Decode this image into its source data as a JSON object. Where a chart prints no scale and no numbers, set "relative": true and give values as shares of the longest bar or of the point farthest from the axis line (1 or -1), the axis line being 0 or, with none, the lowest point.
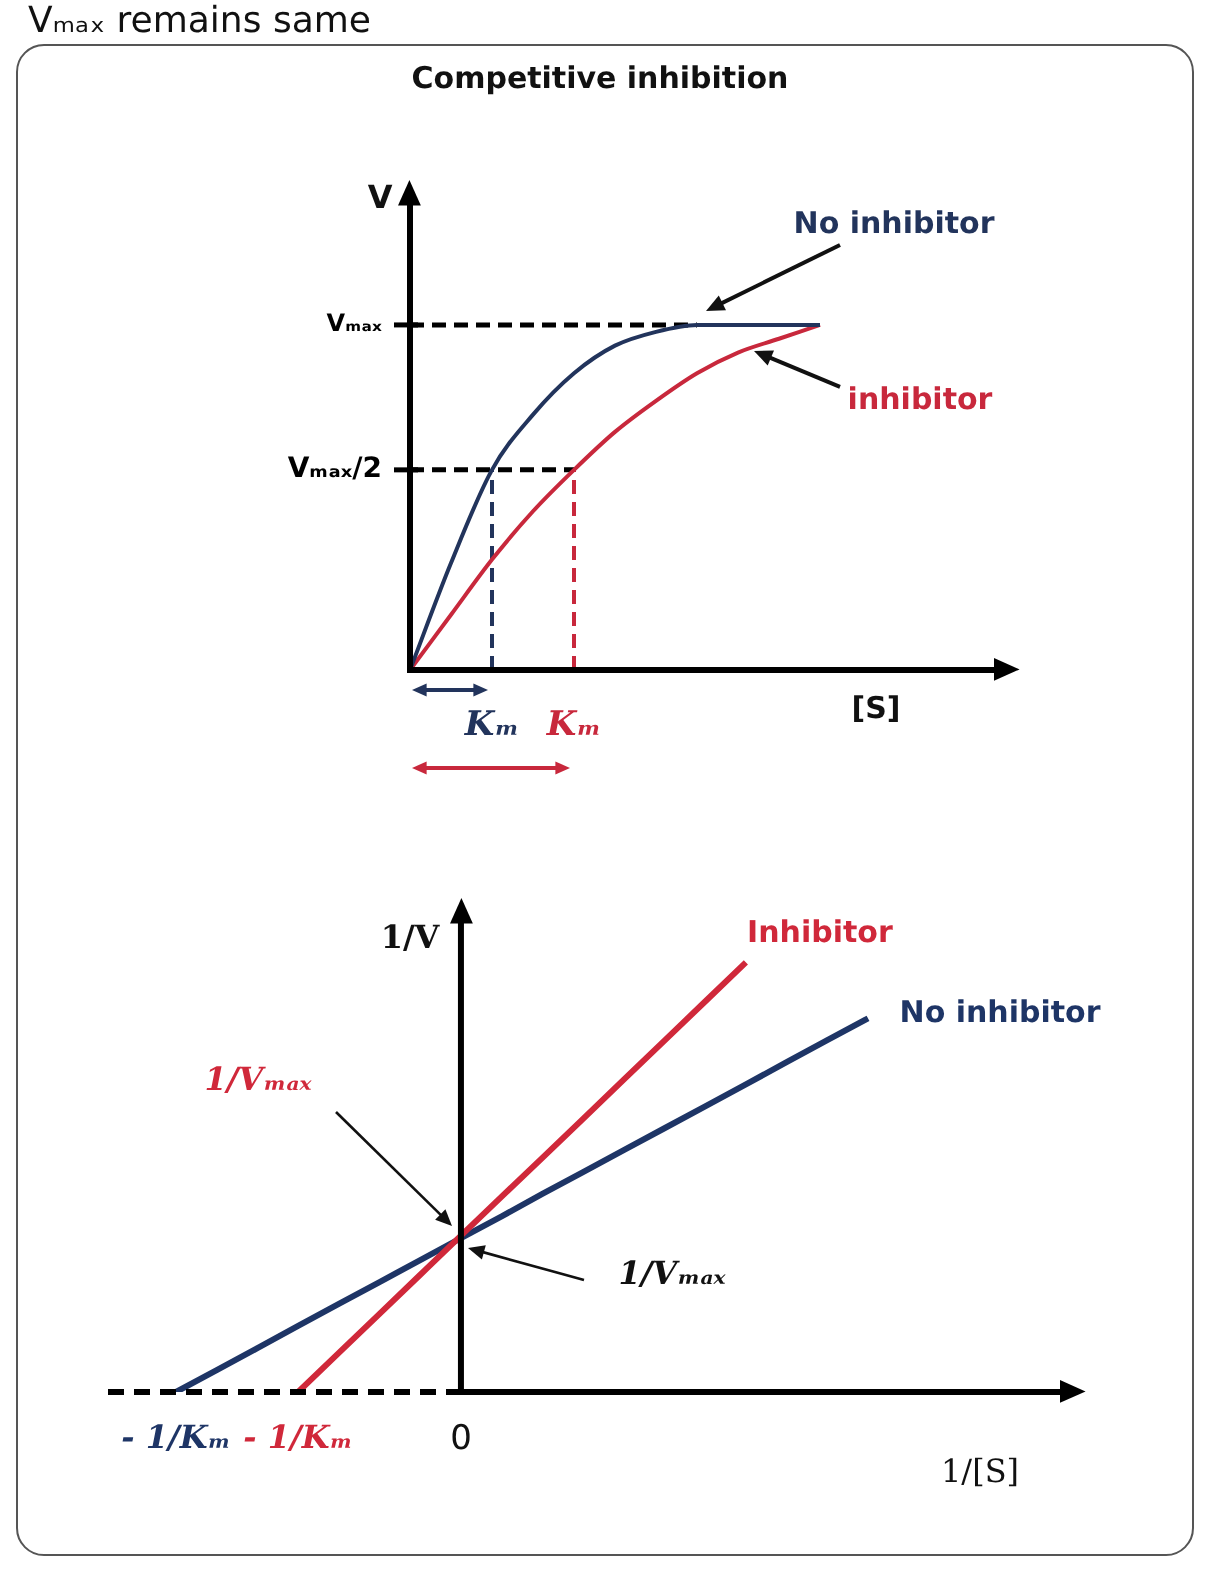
{
  "chart_data": [
    {
      "type": "line",
      "title": "Competitive inhibition",
      "xlabel": "[S]",
      "ylabel": "V",
      "relative": true,
      "categories": [
        null,
        null,
        "Kₘ",
        null,
        "Kₘ",
        null,
        null,
        null,
        null,
        null,
        null
      ],
      "series": [
        {
          "name": "No inhibitor",
          "color": "#22345c",
          "values": [
            0,
            0.31,
            0.58,
            0.74,
            0.86,
            0.94,
            0.98,
            1,
            1,
            1,
            1
          ]
        },
        {
          "name": "inhibitor",
          "color": "#c8283c",
          "values": [
            0,
            0.16,
            0.32,
            0.46,
            0.58,
            0.69,
            0.78,
            0.86,
            0.92,
            0.96,
            1
          ]
        }
      ],
      "ref_lines": [
        {
          "axis": "y",
          "value": 1,
          "label": "Vₘₐₓ",
          "color": "#000000",
          "line_style": "dashed"
        },
        {
          "axis": "y",
          "value": 0.58,
          "label": "Vₘₐₓ/2",
          "color": "#000000",
          "line_style": "dashed"
        },
        {
          "axis": "x",
          "value": "Kₘ",
          "color": "#22345c",
          "line_style": "dashed"
        }
      ],
      "annotations": [
        "Vₘₐₓ remains same"
      ]
    },
    {
      "type": "line",
      "xlabel": "1/[S]",
      "ylabel": "1/V",
      "relative": true,
      "categories": [
        "- 1/Kₘ",
        null,
        null,
        "- 1/Kₘ",
        null,
        null,
        null,
        "0",
        null,
        null,
        null,
        null,
        null,
        null,
        null,
        null,
        null,
        null
      ],
      "series": [
        {
          "name": "Inhibitor",
          "color": "#d0283a",
          "values": [
            null,
            null,
            null,
            0,
            0.091,
            0.182,
            0.273,
            0.364,
            0.455,
            0.545,
            0.636,
            0.727,
            0.818,
            0.909,
            1,
            null,
            null,
            null
          ]
        },
        {
          "name": "No inhibitor",
          "color": "#1e3566",
          "values": [
            0,
            0.051,
            0.102,
            0.154,
            0.205,
            0.256,
            0.307,
            0.358,
            0.409,
            0.461,
            0.512,
            0.563,
            0.614,
            0.665,
            0.716,
            0.768,
            0.819,
            0.87
          ]
        }
      ],
      "annotations": [
        "1/Vₘₐₓ",
        "1/Vₘₐₓ"
      ]
    }
  ]
}
